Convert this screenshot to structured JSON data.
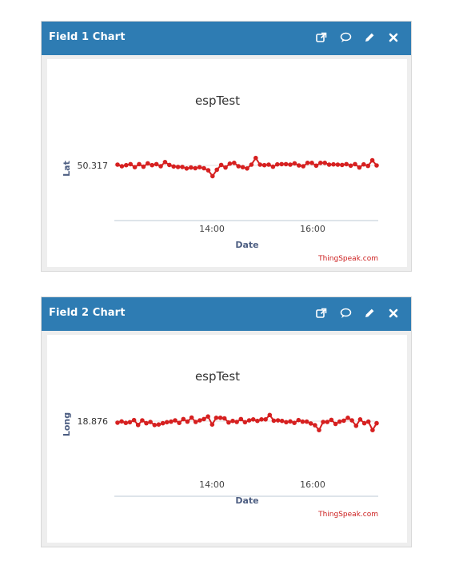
{
  "charts": [
    {
      "header": {
        "title": "Field 1 Chart"
      },
      "tools": [
        "external-link-icon",
        "comment-icon",
        "pencil-icon",
        "close-icon"
      ],
      "chart_data": {
        "type": "line",
        "title": "espTest",
        "xlabel": "Date",
        "ylabel": "Lat",
        "y_tick_label": "50.317",
        "x_tick_labels": [
          "14:00",
          "16:00"
        ],
        "credit": "ThingSpeak.com",
        "series_color": "#d62020",
        "grid": true,
        "series": [
          {
            "values": [
              0.6,
              -0.6,
              0.2,
              1.0,
              -1.4,
              1.0,
              -1.0,
              1.6,
              0.2,
              1.0,
              -0.6,
              2.6,
              0.4,
              -0.8,
              -1.2,
              -1.2,
              -2.4,
              -1.6,
              -2.2,
              -1.4,
              -2.2,
              -3.8,
              -8.4,
              -3.4,
              0.4,
              -1.6,
              1.4,
              2.0,
              -0.6,
              -1.4,
              -2.4,
              0.6,
              5.8,
              0.6,
              0.2,
              0.6,
              -1.0,
              0.8,
              1.0,
              1.0,
              0.6,
              1.6,
              0.0,
              -0.6,
              2.0,
              2.0,
              -0.2,
              2.0,
              2.0,
              0.6,
              0.8,
              0.6,
              0.4,
              1.0,
              -0.2,
              1.0,
              -1.6,
              0.8,
              -0.4,
              4.0,
              0.0
            ]
          }
        ]
      }
    },
    {
      "header": {
        "title": "Field 2 Chart"
      },
      "tools": [
        "external-link-icon",
        "comment-icon",
        "pencil-icon",
        "close-icon"
      ],
      "chart_data": {
        "type": "line",
        "title": "espTest",
        "xlabel": "Date",
        "ylabel": "Long",
        "y_tick_label": "18.876",
        "x_tick_labels": [
          "14:00",
          "16:00"
        ],
        "credit": "ThingSpeak.com",
        "series_color": "#d62020",
        "grid": true,
        "series": [
          {
            "values": [
              -1.2,
              -0.2,
              -1.4,
              -0.8,
              0.8,
              -3.0,
              0.6,
              -1.6,
              -0.6,
              -3.0,
              -2.6,
              -1.6,
              -0.8,
              -0.4,
              0.6,
              -1.4,
              1.6,
              -0.4,
              2.8,
              -0.6,
              0.6,
              1.6,
              3.6,
              -2.6,
              2.6,
              2.6,
              2.2,
              -1.0,
              0.2,
              -0.6,
              1.6,
              -0.8,
              0.6,
              1.4,
              0.2,
              1.4,
              1.4,
              4.8,
              0.4,
              0.6,
              0.2,
              -0.8,
              -0.2,
              -1.4,
              0.8,
              -0.4,
              -0.4,
              -1.8,
              -3.2,
              -7.0,
              -0.6,
              -0.6,
              1.0,
              -2.2,
              -0.4,
              0.4,
              2.6,
              0.6,
              -3.6,
              1.4,
              -1.6,
              -0.4,
              -7.0,
              -1.6
            ]
          }
        ]
      }
    }
  ]
}
